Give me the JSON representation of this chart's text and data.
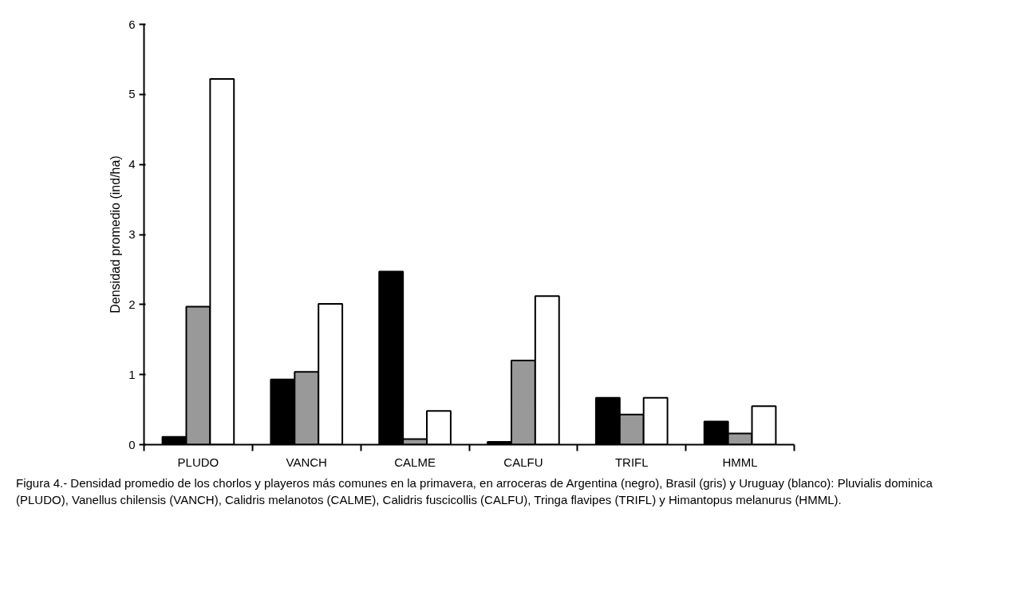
{
  "chart_data": {
    "type": "bar",
    "ylabel": "Densidad promedio (ind/ha)",
    "categories": [
      "PLUDO",
      "VANCH",
      "CALME",
      "CALFU",
      "TRIFL",
      "HMML"
    ],
    "series": [
      {
        "color": "#000000",
        "values": [
          0.11,
          0.93,
          2.47,
          0.04,
          0.67,
          0.33
        ]
      },
      {
        "color": "#999999",
        "values": [
          1.97,
          1.04,
          0.08,
          1.2,
          0.43,
          0.16
        ]
      },
      {
        "color": "#ffffff",
        "values": [
          5.22,
          2.01,
          0.48,
          2.12,
          0.67,
          0.55
        ]
      }
    ],
    "ylim": [
      0,
      6
    ],
    "yticks": [
      0,
      1,
      2,
      3,
      4,
      5,
      6
    ],
    "grid": false,
    "annotations": [
      "Figura 4.- Densidad promedio de los chorlos y playeros más comunes en la primavera, en arroceras de Argentina (negro), Brasil (gris) y Uruguay (blanco): Pluvialis dominica (PLUDO), Vanellus chilensis (VANCH), Calidris melanotos (CALME), Calidris fuscicollis (CALFU), Tringa flavipes (TRIFL) y Himantopus melanurus (HMML)."
    ]
  }
}
